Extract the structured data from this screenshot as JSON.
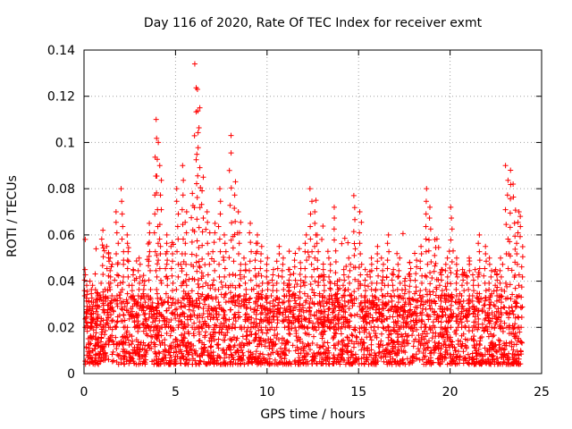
{
  "chart_data": {
    "type": "scatter",
    "title": "Day 116 of 2020, Rate Of TEC Index for receiver exmt",
    "xlabel": "GPS time / hours",
    "ylabel": "ROTI / TECUs",
    "xlim": [
      0,
      25
    ],
    "ylim": [
      0,
      0.14
    ],
    "xticks": [
      "0",
      "5",
      "10",
      "15",
      "20",
      "25"
    ],
    "yticks": [
      "0",
      "0.02",
      "0.04",
      "0.06",
      "0.08",
      "0.1",
      "0.12",
      "0.14"
    ],
    "grid": true,
    "marker": "+",
    "color": "#ff0000",
    "series": [
      {
        "name": "ROTI",
        "x": [
          0.1,
          0.4,
          0.7,
          1.0,
          1.3,
          1.5,
          1.8,
          2.1,
          2.4,
          2.7,
          3.0,
          3.3,
          3.6,
          3.9,
          4.0,
          4.2,
          4.5,
          4.8,
          5.1,
          5.4,
          5.6,
          5.9,
          6.1,
          6.2,
          6.3,
          6.5,
          6.8,
          7.1,
          7.4,
          7.7,
          8.0,
          8.2,
          8.5,
          8.8,
          9.1,
          9.4,
          9.7,
          10.0,
          10.3,
          10.6,
          10.9,
          11.2,
          11.5,
          11.8,
          12.1,
          12.4,
          12.6,
          12.8,
          13.1,
          13.4,
          13.7,
          13.9,
          14.2,
          14.5,
          14.8,
          15.1,
          15.4,
          15.7,
          16.0,
          16.3,
          16.6,
          16.9,
          17.2,
          17.5,
          17.8,
          18.1,
          18.4,
          18.7,
          18.9,
          19.2,
          19.5,
          19.8,
          20.1,
          20.4,
          20.7,
          21.0,
          21.3,
          21.6,
          21.9,
          22.2,
          22.5,
          22.8,
          23.1,
          23.3,
          23.5,
          23.7,
          23.9
        ],
        "y": [
          0.045,
          0.04,
          0.035,
          0.062,
          0.055,
          0.05,
          0.07,
          0.08,
          0.06,
          0.045,
          0.05,
          0.04,
          0.065,
          0.11,
          0.1,
          0.09,
          0.06,
          0.055,
          0.08,
          0.09,
          0.07,
          0.078,
          0.134,
          0.123,
          0.115,
          0.085,
          0.07,
          0.065,
          0.08,
          0.06,
          0.103,
          0.083,
          0.07,
          0.05,
          0.065,
          0.06,
          0.055,
          0.05,
          0.045,
          0.055,
          0.05,
          0.045,
          0.052,
          0.048,
          0.06,
          0.08,
          0.075,
          0.06,
          0.045,
          0.05,
          0.072,
          0.04,
          0.045,
          0.05,
          0.077,
          0.07,
          0.045,
          0.05,
          0.055,
          0.05,
          0.06,
          0.045,
          0.05,
          0.04,
          0.048,
          0.052,
          0.055,
          0.08,
          0.072,
          0.058,
          0.045,
          0.05,
          0.072,
          0.05,
          0.045,
          0.05,
          0.045,
          0.06,
          0.055,
          0.05,
          0.045,
          0.05,
          0.09,
          0.088,
          0.082,
          0.07,
          0.068
        ]
      }
    ],
    "density_note": "dense band of values between 0.005 and 0.03 across 0-24 hours"
  }
}
